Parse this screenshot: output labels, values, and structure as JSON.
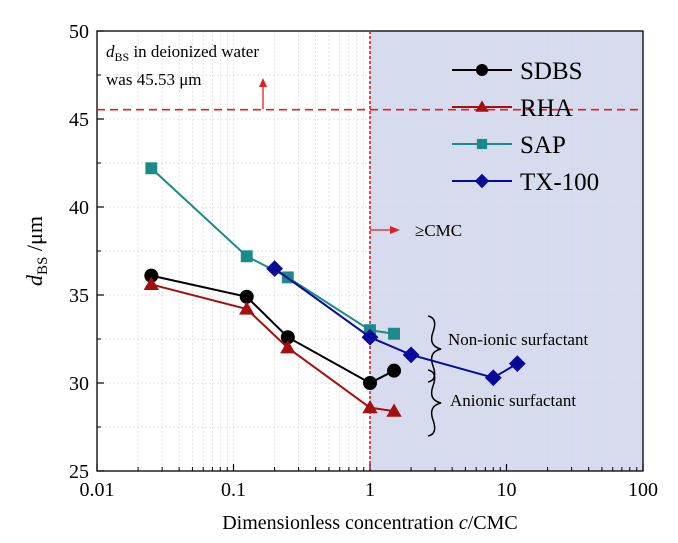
{
  "chart_data": {
    "type": "line",
    "xlabel_prefix": "Dimensionless concentration ",
    "xlabel_var": "c",
    "xlabel_suffix": "/CMC",
    "ylabel_main": "d",
    "ylabel_sub": "BS",
    "ylabel_unit": " /μm",
    "x_scale": "log",
    "xlim": [
      0.01,
      100
    ],
    "ylim": [
      25,
      50
    ],
    "x_ticks": [
      "0.01",
      "0.1",
      "1",
      "10",
      "100"
    ],
    "y_ticks": [
      "25",
      "30",
      "35",
      "40",
      "45",
      "50"
    ],
    "grid": true,
    "legend_position": "top-right",
    "series": [
      {
        "name": "SDBS",
        "color": "#000000",
        "marker": "circle",
        "x": [
          0.025,
          0.125,
          0.25,
          1,
          1.5
        ],
        "y": [
          36.1,
          34.9,
          32.6,
          30.0,
          30.7
        ]
      },
      {
        "name": "RHA",
        "color": "#a50f0f",
        "marker": "triangle",
        "x": [
          0.025,
          0.125,
          0.25,
          1,
          1.5
        ],
        "y": [
          35.6,
          34.2,
          32.0,
          28.6,
          28.4
        ]
      },
      {
        "name": "SAP",
        "color": "#1a8a8a",
        "marker": "square",
        "x": [
          0.025,
          0.125,
          0.25,
          1,
          1.5
        ],
        "y": [
          42.2,
          37.2,
          36.0,
          33.0,
          32.8
        ]
      },
      {
        "name": "TX-100",
        "color": "#0a0a9a",
        "marker": "diamond",
        "x": [
          0.2,
          1,
          2,
          8,
          12
        ],
        "y": [
          36.5,
          32.6,
          31.6,
          30.3,
          31.1
        ]
      }
    ],
    "reference_line_y": 45.53,
    "cmc_line_x": 1,
    "shaded_region_x": [
      1,
      100
    ],
    "shade_color": "#d6dcee",
    "annotation_color": "#e02020",
    "annotations": {
      "ref_line1_var": "d",
      "ref_line1_sub": "BS",
      "ref_line1_rest": "  in deionized water",
      "ref_line2": "was 45.53 μm",
      "cmc": "≥CMC",
      "nonionic": "Non-ionic surfactant",
      "anionic": "Anionic surfactant"
    }
  }
}
